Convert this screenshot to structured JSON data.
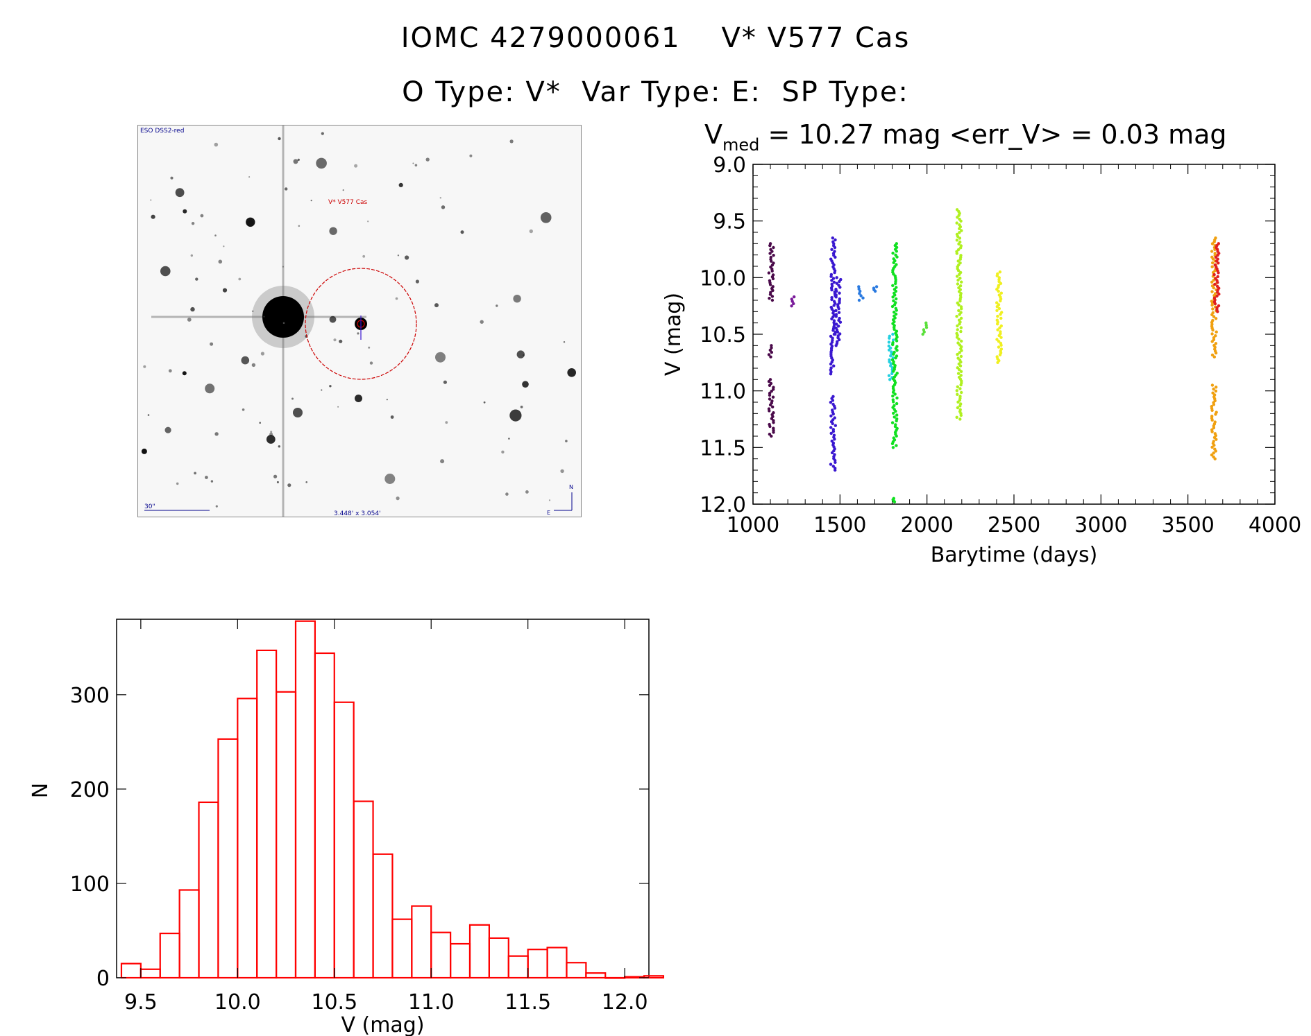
{
  "header": {
    "line1": "IOMC 4279000061    V* V577 Cas",
    "line2": "O Type: V*  Var Type: E:  SP Type:"
  },
  "finder": {
    "survey_label": "ESO DSS2-red",
    "target_label": "V* V577 Cas",
    "scale_label": "30\"",
    "fov_label": "3.448' x 3.054'",
    "north_label": "N",
    "east_label": "E",
    "marker_color": "#cc0000"
  },
  "chart_data": [
    {
      "type": "scatter",
      "title_prefix": "V",
      "title_sub": "med",
      "title_rest": " = 10.27 mag <err_V> = 0.03 mag",
      "xlabel": "Barytime (days)",
      "ylabel": "V (mag)",
      "xlim": [
        1000,
        4000
      ],
      "ylim": [
        12.0,
        9.0
      ],
      "xticks": [
        1000,
        1500,
        2000,
        2500,
        3000,
        3500,
        4000
      ],
      "xtick_labels": [
        "1000",
        "1500",
        "2000",
        "2500",
        "3000",
        "3500",
        "4000"
      ],
      "yticks": [
        9.0,
        9.5,
        10.0,
        10.5,
        11.0,
        11.5,
        12.0
      ],
      "ytick_labels": [
        "9.0",
        "9.5",
        "10.0",
        "10.5",
        "11.0",
        "11.5",
        "12.0"
      ],
      "series": [
        {
          "name": "season-1",
          "color": "#4a0a4a",
          "x": 1105,
          "segments": [
            [
              9.7,
              10.2
            ],
            [
              10.6,
              10.7
            ],
            [
              10.9,
              11.4
            ]
          ]
        },
        {
          "name": "season-2",
          "color": "#7a1a9a",
          "x": 1235,
          "segments": [
            [
              10.17,
              10.25
            ]
          ]
        },
        {
          "name": "season-3",
          "color": "#3a18d0",
          "x": 1460,
          "segments": [
            [
              9.65,
              10.5
            ],
            [
              10.5,
              10.85
            ],
            [
              11.05,
              11.7
            ]
          ]
        },
        {
          "name": "season-3b",
          "color": "#3a18d0",
          "x": 1490,
          "segments": [
            [
              10.0,
              10.6
            ]
          ]
        },
        {
          "name": "season-4",
          "color": "#2a7ae0",
          "x": 1620,
          "segments": [
            [
              10.08,
              10.2
            ]
          ]
        },
        {
          "name": "season-4b",
          "color": "#2a7ae0",
          "x": 1700,
          "segments": [
            [
              10.08,
              10.12
            ]
          ]
        },
        {
          "name": "season-5",
          "color": "#22d0e0",
          "x": 1795,
          "segments": [
            [
              10.5,
              10.9
            ]
          ]
        },
        {
          "name": "season-6",
          "color": "#10e020",
          "x": 1815,
          "segments": [
            [
              9.7,
              11.5
            ],
            [
              11.95,
              11.98
            ]
          ]
        },
        {
          "name": "season-7",
          "color": "#5ae03a",
          "x": 1985,
          "segments": [
            [
              10.4,
              10.5
            ]
          ]
        },
        {
          "name": "season-8",
          "color": "#b0f020",
          "x": 2185,
          "segments": [
            [
              9.4,
              11.25
            ]
          ]
        },
        {
          "name": "season-9",
          "color": "#f0f020",
          "x": 2415,
          "segments": [
            [
              9.95,
              10.75
            ]
          ]
        },
        {
          "name": "season-10",
          "color": "#f0a010",
          "x": 3650,
          "segments": [
            [
              9.65,
              10.7
            ],
            [
              10.95,
              11.6
            ]
          ]
        },
        {
          "name": "season-10b",
          "color": "#e02020",
          "x": 3665,
          "segments": [
            [
              9.7,
              10.3
            ]
          ]
        }
      ]
    },
    {
      "type": "bar",
      "subtype": "histogram",
      "xlabel": "V (mag)",
      "ylabel": "N",
      "xlim": [
        9.375,
        12.125
      ],
      "ylim": [
        0,
        380
      ],
      "xticks": [
        9.5,
        10.0,
        10.5,
        11.0,
        11.5,
        12.0
      ],
      "xtick_labels": [
        "9.5",
        "10.0",
        "10.5",
        "11.0",
        "11.5",
        "12.0"
      ],
      "yticks": [
        0,
        100,
        200,
        300
      ],
      "ytick_labels": [
        "0",
        "100",
        "200",
        "300"
      ],
      "bin_start": 9.4,
      "bin_width": 0.1,
      "color": "#ff0000",
      "values": [
        15,
        9,
        47,
        93,
        186,
        253,
        296,
        347,
        303,
        378,
        344,
        292,
        187,
        131,
        62,
        76,
        48,
        36,
        56,
        42,
        23,
        30,
        32,
        16,
        5,
        0,
        1,
        2
      ]
    }
  ]
}
